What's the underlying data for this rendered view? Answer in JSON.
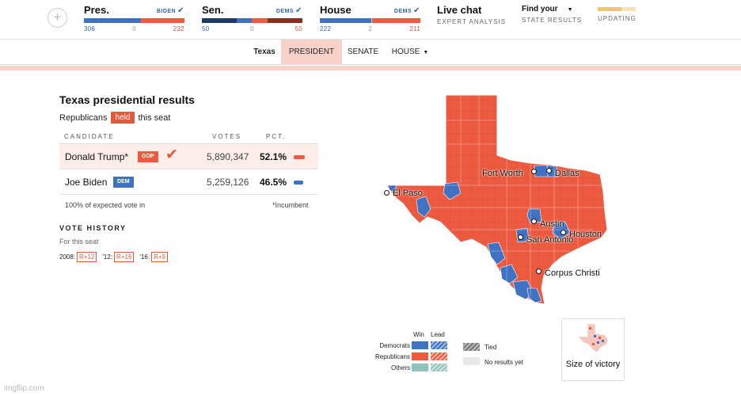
{
  "colors": {
    "dem": "#3f72c3",
    "rep": "#ec5a3f",
    "others": "#8fc2bb",
    "no_results": "#e8e8e8",
    "tied": "#888888",
    "highlight": "#f8d2c9"
  },
  "top_nav": {
    "add_icon": "plus-icon",
    "races": [
      {
        "title": "Pres.",
        "winner": "BIDEN",
        "dem": "306",
        "other": "0",
        "rep": "232",
        "dem_share": 0.569,
        "other_share": 0.0
      },
      {
        "title": "Sen.",
        "winner": "DEMS",
        "dem": "50",
        "other": "0",
        "rep": "50",
        "dem_share": 0.5,
        "other_share": 0.0
      },
      {
        "title": "House",
        "winner": "DEMS",
        "dem": "222",
        "other": "2",
        "rep": "211",
        "dem_share": 0.51,
        "other_share": 0.005
      }
    ],
    "live_chat": {
      "title": "Live chat",
      "subtitle": "EXPERT ANALYSIS"
    },
    "find_state": {
      "title": "Find your",
      "subtitle": "STATE RESULTS"
    },
    "updating": {
      "label": "UPDATING"
    }
  },
  "sub_nav": {
    "state": "Texas",
    "tabs": [
      {
        "label": "PRESIDENT",
        "active": true
      },
      {
        "label": "SENATE",
        "active": false
      },
      {
        "label": "HOUSE",
        "active": false,
        "dropdown": true
      }
    ]
  },
  "results": {
    "title": "Texas presidential results",
    "held_prefix": "Republicans",
    "held_badge": "held",
    "held_suffix": "this seat",
    "headers": {
      "candidate": "CANDIDATE",
      "votes": "VOTES",
      "pct": "PCT."
    },
    "candidates": [
      {
        "name": "Donald Trump*",
        "party": "GOP",
        "votes": "5,890,347",
        "pct": "52.1%",
        "pct_value": 52.1,
        "winner": true
      },
      {
        "name": "Joe Biden",
        "party": "DEM",
        "votes": "5,259,126",
        "pct": "46.5%",
        "pct_value": 46.5,
        "winner": false
      }
    ],
    "expected_vote": "100% of expected vote in",
    "incumbent_note": "*Incumbent"
  },
  "vote_history": {
    "title": "VOTE HISTORY",
    "subtitle": "For this seat",
    "items": [
      {
        "year": "2008:",
        "margin": "R+12"
      },
      {
        "year": "'12:",
        "margin": "R+16"
      },
      {
        "year": "'16:",
        "margin": "R+9"
      }
    ]
  },
  "map": {
    "cities": [
      "El Paso",
      "Fort Worth",
      "Dallas",
      "Austin",
      "San Antonio",
      "Houston",
      "Corpus Christi"
    ]
  },
  "legend": {
    "win_label": "Win",
    "lead_label": "Lead",
    "rows": [
      "Democrats",
      "Republicans",
      "Others"
    ],
    "tied": "Tied",
    "no_results": "No results yet",
    "size_of_victory": "Size of victory"
  },
  "watermark": "imgflip.com"
}
